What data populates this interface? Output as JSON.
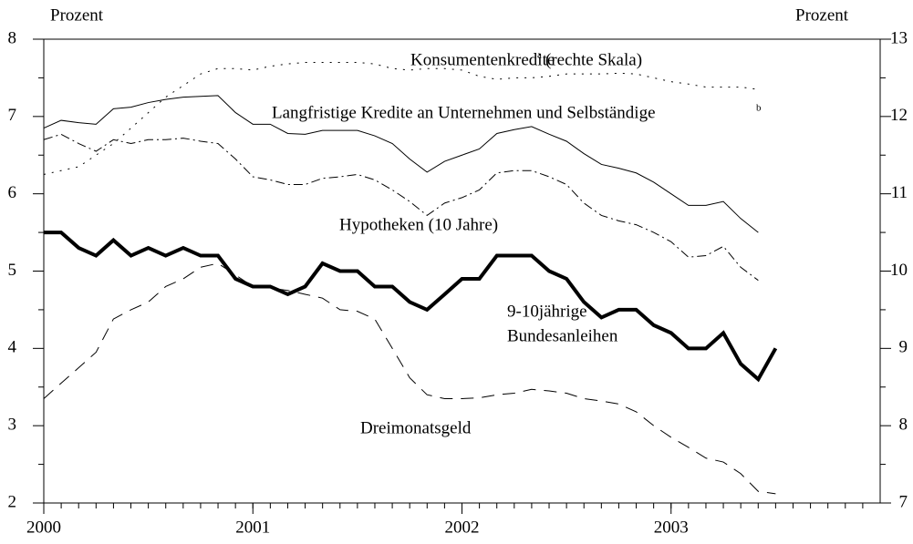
{
  "chart_data": {
    "type": "line",
    "y_label": "Prozent",
    "y2_label": "Prozent",
    "x": [
      2000,
      2000.083,
      2000.167,
      2000.25,
      2000.333,
      2000.417,
      2000.5,
      2000.583,
      2000.667,
      2000.75,
      2000.833,
      2000.917,
      2001,
      2001.083,
      2001.167,
      2001.25,
      2001.333,
      2001.417,
      2001.5,
      2001.583,
      2001.667,
      2001.75,
      2001.833,
      2001.917,
      2002,
      2002.083,
      2002.167,
      2002.25,
      2002.333,
      2002.417,
      2002.5,
      2002.583,
      2002.667,
      2002.75,
      2002.833,
      2002.917,
      2003,
      2003.083,
      2003.167,
      2003.25,
      2003.333,
      2003.417,
      2003.5
    ],
    "xlim": [
      2000,
      2004
    ],
    "xticks": [
      2000,
      2001,
      2002,
      2003
    ],
    "ylim": [
      2,
      8
    ],
    "yticks": [
      2,
      3,
      4,
      5,
      6,
      7,
      8
    ],
    "y2lim": [
      7,
      13
    ],
    "y2ticks": [
      7,
      8,
      9,
      10,
      11,
      12,
      13
    ],
    "series": [
      {
        "name": "Konsumentenkredite",
        "axis": "y2",
        "color": "#000000",
        "style": "dotted",
        "values": [
          11.25,
          11.3,
          11.35,
          11.5,
          11.65,
          11.85,
          12.05,
          12.25,
          12.4,
          12.55,
          12.62,
          12.62,
          12.6,
          12.65,
          12.68,
          12.7,
          12.7,
          12.7,
          12.7,
          12.68,
          12.62,
          12.6,
          12.62,
          12.62,
          12.6,
          12.52,
          12.48,
          12.5,
          12.5,
          12.52,
          12.55,
          12.55,
          12.55,
          12.56,
          12.55,
          12.5,
          12.45,
          12.42,
          12.38,
          12.38,
          12.38,
          12.35,
          null
        ]
      },
      {
        "name": "Langfristige Kredite an Unternehmen und Selbständige",
        "color": "#000000",
        "style": "thin",
        "values": [
          6.85,
          6.95,
          6.92,
          6.9,
          7.1,
          7.12,
          7.18,
          7.22,
          7.25,
          7.26,
          7.27,
          7.05,
          6.9,
          6.9,
          6.78,
          6.77,
          6.82,
          6.82,
          6.82,
          6.75,
          6.65,
          6.45,
          6.28,
          6.42,
          6.5,
          6.58,
          6.78,
          6.83,
          6.87,
          6.77,
          6.68,
          6.52,
          6.38,
          6.33,
          6.27,
          6.15,
          6.0,
          5.85,
          5.85,
          5.9,
          5.68,
          5.5,
          null
        ]
      },
      {
        "name": "Hypotheken (10 Jahre)",
        "color": "#000000",
        "style": "dashdot",
        "values": [
          6.7,
          6.77,
          6.65,
          6.55,
          6.7,
          6.65,
          6.7,
          6.7,
          6.72,
          6.68,
          6.65,
          6.45,
          6.22,
          6.18,
          6.12,
          6.12,
          6.2,
          6.22,
          6.25,
          6.18,
          6.05,
          5.9,
          5.72,
          5.88,
          5.95,
          6.05,
          6.27,
          6.3,
          6.3,
          6.22,
          6.12,
          5.88,
          5.72,
          5.65,
          5.6,
          5.5,
          5.38,
          5.18,
          5.2,
          5.32,
          5.05,
          4.88,
          null
        ]
      },
      {
        "name": [
          "9-10jährige",
          "Bundesanleihen"
        ],
        "color": "#000000",
        "style": "thick",
        "values": [
          5.5,
          5.5,
          5.3,
          5.2,
          5.4,
          5.2,
          5.3,
          5.2,
          5.3,
          5.2,
          5.2,
          4.9,
          4.8,
          4.8,
          4.7,
          4.8,
          5.1,
          5.0,
          5.0,
          4.8,
          4.8,
          4.6,
          4.5,
          4.7,
          4.9,
          4.9,
          5.2,
          5.2,
          5.2,
          5.0,
          4.9,
          4.6,
          4.4,
          4.5,
          4.5,
          4.3,
          4.2,
          4.0,
          4.0,
          4.2,
          3.8,
          3.6,
          4.0
        ]
      },
      {
        "name": "Dreimonatsgeld",
        "color": "#000000",
        "style": "dashed",
        "values": [
          3.35,
          3.55,
          3.75,
          3.95,
          4.38,
          4.5,
          4.6,
          4.8,
          4.9,
          5.05,
          5.1,
          4.95,
          4.8,
          4.78,
          4.75,
          4.7,
          4.65,
          4.5,
          4.48,
          4.38,
          4.0,
          3.62,
          3.4,
          3.35,
          3.35,
          3.36,
          3.4,
          3.42,
          3.47,
          3.45,
          3.42,
          3.35,
          3.32,
          3.28,
          3.18,
          3.0,
          2.85,
          2.72,
          2.58,
          2.53,
          2.38,
          2.15,
          2.12
        ]
      }
    ],
    "annotations": [
      "a",
      "(rechte Skala)",
      "b"
    ]
  }
}
